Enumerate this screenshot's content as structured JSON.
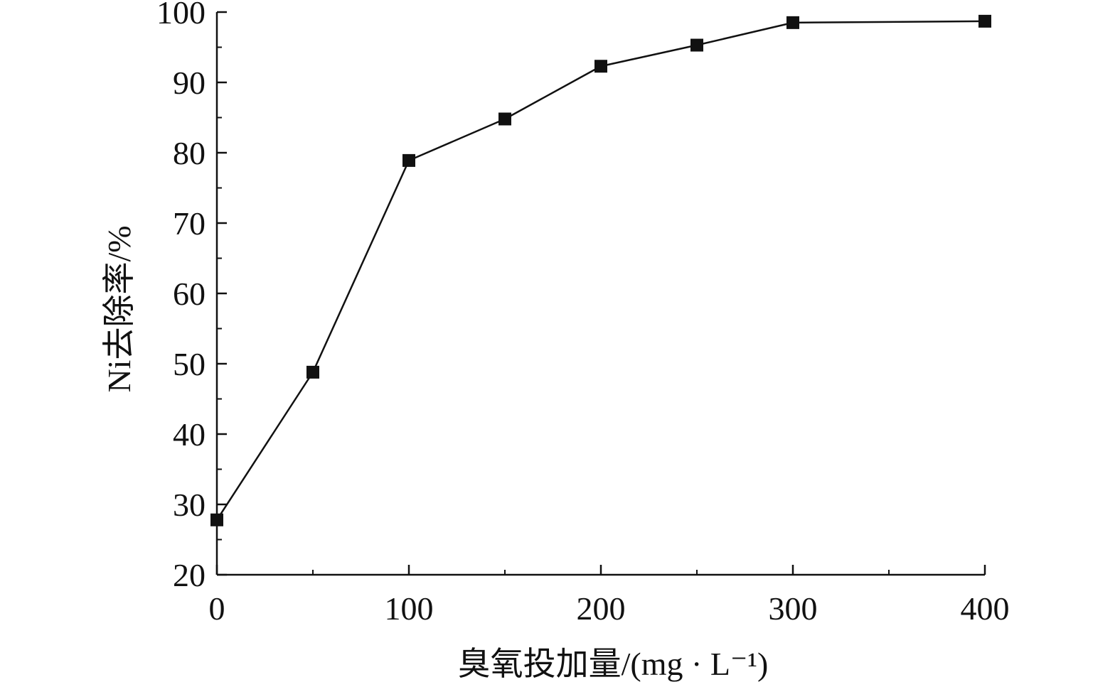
{
  "chart_data": {
    "type": "line",
    "title": "",
    "xlabel": "臭氧投加量/(mg · L⁻¹)",
    "ylabel": "Ni去除率/%",
    "xlim": [
      0,
      400
    ],
    "ylim": [
      20,
      100
    ],
    "x_ticks": [
      0,
      100,
      200,
      300,
      400
    ],
    "x_tick_labels": [
      "0",
      "100",
      "200",
      "300",
      "400"
    ],
    "y_ticks": [
      20,
      30,
      40,
      50,
      60,
      70,
      80,
      90,
      100
    ],
    "y_tick_labels": [
      "20",
      "30",
      "40",
      "50",
      "60",
      "70",
      "80",
      "90",
      "100"
    ],
    "grid": false,
    "legend": "none",
    "series": [
      {
        "marker": "square",
        "color": "#111111",
        "x": [
          0,
          50,
          100,
          150,
          200,
          250,
          300,
          400
        ],
        "y": [
          27.8,
          48.8,
          78.9,
          84.8,
          92.3,
          95.3,
          98.5,
          98.7
        ]
      }
    ]
  }
}
